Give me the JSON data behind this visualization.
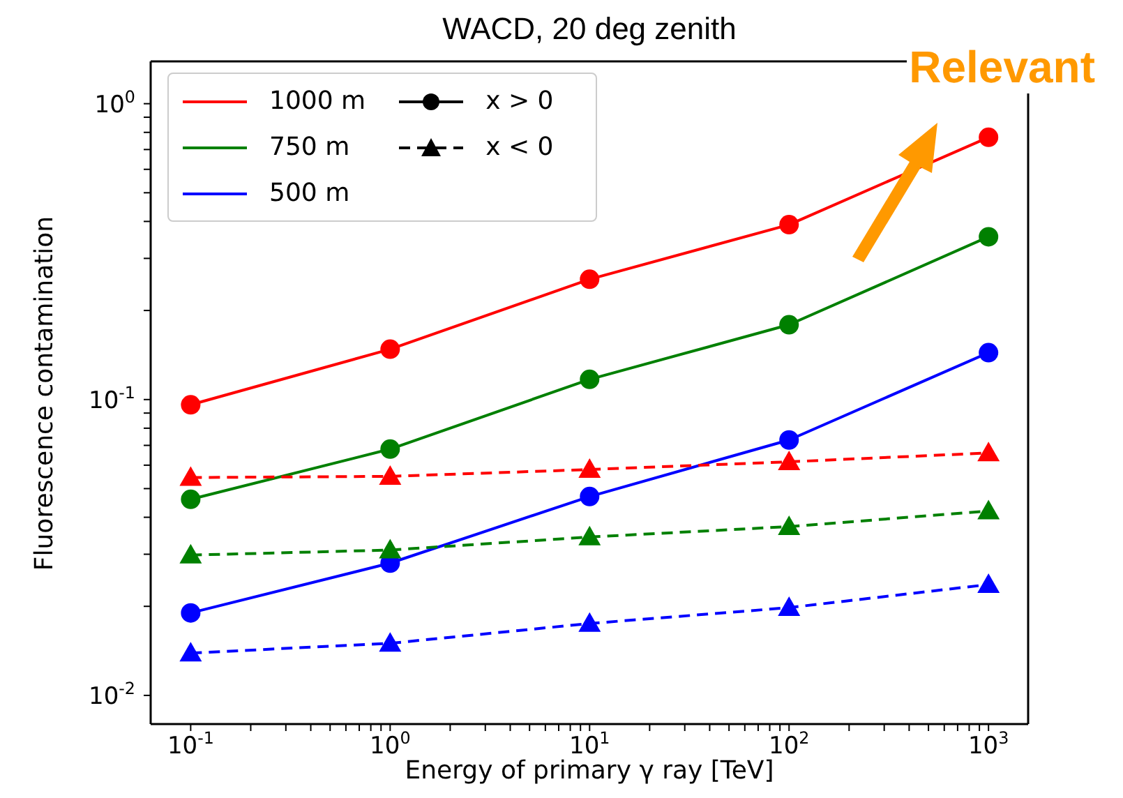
{
  "chart_data": {
    "type": "line",
    "title": "WACD, 20 deg zenith",
    "xlabel": "Energy of primary γ ray [TeV]",
    "ylabel": "Fluorescence contamination",
    "annotations": [
      "Relevant"
    ],
    "log": "xy",
    "legend": "top left",
    "x": [
      0.1,
      1,
      10,
      100,
      1000
    ],
    "xlim": [
      0.063,
      1580
    ],
    "ylim": [
      0.008,
      1.39
    ],
    "xticks": [
      {
        "value": 0.1,
        "label": "10$^{-1}$"
      },
      {
        "value": 0.2,
        "label": null
      },
      {
        "value": 0.3,
        "label": null
      },
      {
        "value": 0.4,
        "label": null
      },
      {
        "value": 0.5,
        "label": null
      },
      {
        "value": 0.6,
        "label": null
      },
      {
        "value": 0.7,
        "label": null
      },
      {
        "value": 0.8,
        "label": null
      },
      {
        "value": 0.9,
        "label": null
      },
      {
        "value": 1,
        "label": "10$^{0}$"
      },
      {
        "value": 2,
        "label": null
      },
      {
        "value": 3,
        "label": null
      },
      {
        "value": 4,
        "label": null
      },
      {
        "value": 5,
        "label": null
      },
      {
        "value": 6,
        "label": null
      },
      {
        "value": 7,
        "label": null
      },
      {
        "value": 8,
        "label": null
      },
      {
        "value": 9,
        "label": null
      },
      {
        "value": 10,
        "label": "10$^{1}$"
      },
      {
        "value": 20,
        "label": null
      },
      {
        "value": 30,
        "label": null
      },
      {
        "value": 40,
        "label": null
      },
      {
        "value": 50,
        "label": null
      },
      {
        "value": 60,
        "label": null
      },
      {
        "value": 70,
        "label": null
      },
      {
        "value": 80,
        "label": null
      },
      {
        "value": 90,
        "label": null
      },
      {
        "value": 100,
        "label": "10$^{2}$"
      },
      {
        "value": 200,
        "label": null
      },
      {
        "value": 300,
        "label": null
      },
      {
        "value": 400,
        "label": null
      },
      {
        "value": 500,
        "label": null
      },
      {
        "value": 600,
        "label": null
      },
      {
        "value": 700,
        "label": null
      },
      {
        "value": 800,
        "label": null
      },
      {
        "value": 900,
        "label": null
      },
      {
        "value": 1000,
        "label": "10$^{3}$"
      }
    ],
    "yticks": [
      {
        "value": 0.01,
        "label": "10$^{-2}$"
      },
      {
        "value": 0.02,
        "label": null
      },
      {
        "value": 0.03,
        "label": null
      },
      {
        "value": 0.04,
        "label": null
      },
      {
        "value": 0.05,
        "label": null
      },
      {
        "value": 0.06,
        "label": null
      },
      {
        "value": 0.07,
        "label": null
      },
      {
        "value": 0.08,
        "label": null
      },
      {
        "value": 0.09,
        "label": null
      },
      {
        "value": 0.1,
        "label": "10$^{-1}$"
      },
      {
        "value": 0.2,
        "label": null
      },
      {
        "value": 0.3,
        "label": null
      },
      {
        "value": 0.4,
        "label": null
      },
      {
        "value": 0.5,
        "label": null
      },
      {
        "value": 0.6,
        "label": null
      },
      {
        "value": 0.7,
        "label": null
      },
      {
        "value": 0.8,
        "label": null
      },
      {
        "value": 0.9,
        "label": null
      },
      {
        "value": 1,
        "label": "10$^{0}$"
      }
    ],
    "series": [
      {
        "name": "1000 m",
        "color": "#ff0000",
        "marker": "circle",
        "line_style": "solid",
        "values": [
          0.096,
          0.148,
          0.255,
          0.39,
          0.77
        ]
      },
      {
        "name": "750 m",
        "color": "#008000",
        "marker": "circle",
        "line_style": "solid",
        "values": [
          0.046,
          0.068,
          0.117,
          0.179,
          0.355
        ]
      },
      {
        "name": "500 m",
        "color": "#0000ff",
        "marker": "circle",
        "line_style": "solid",
        "values": [
          0.019,
          0.028,
          0.047,
          0.073,
          0.144
        ]
      },
      {
        "color": "#ff0000",
        "marker": "triangle",
        "line_style": "dashed",
        "values": [
          0.0545,
          0.055,
          0.058,
          0.0616,
          0.066
        ]
      },
      {
        "color": "#008000",
        "marker": "triangle",
        "line_style": "dashed",
        "values": [
          0.0298,
          0.031,
          0.0343,
          0.0372,
          0.042
        ]
      },
      {
        "color": "#0000ff",
        "marker": "triangle",
        "line_style": "dashed",
        "values": [
          0.0139,
          0.015,
          0.0175,
          0.0198,
          0.0237
        ]
      },
      {
        "name": "x > 0",
        "color": "#000000",
        "marker": "circle",
        "line_style": "solid",
        "values": [
          null,
          null,
          null,
          null,
          null
        ]
      },
      {
        "name": "x < 0",
        "color": "#000000",
        "marker": "triangle",
        "line_style": "dashed",
        "values": [
          null,
          null,
          null,
          null,
          null
        ]
      }
    ]
  }
}
